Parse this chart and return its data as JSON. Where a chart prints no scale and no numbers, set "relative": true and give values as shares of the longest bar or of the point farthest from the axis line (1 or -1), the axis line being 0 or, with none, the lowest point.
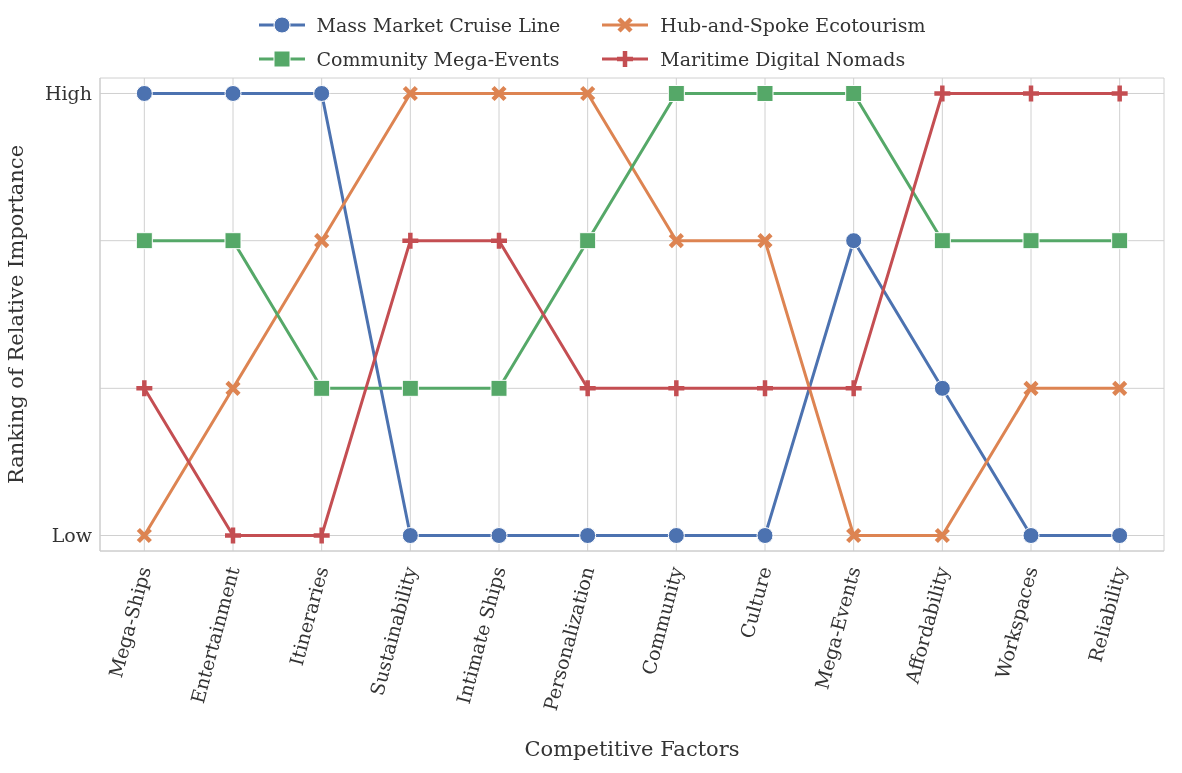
{
  "chart_data": {
    "type": "line",
    "xlabel": "Competitive Factors",
    "ylabel": "Ranking of Relative Importance",
    "categories": [
      "Mega-Ships",
      "Entertainment",
      "Itineraries",
      "Sustainability",
      "Intimate Ships",
      "Personalization",
      "Community",
      "Culture",
      "Mega-Events",
      "Affordability",
      "Workspaces",
      "Reliability"
    ],
    "series": [
      {
        "name": "Mass Market Cruise Line",
        "color": "#4c72b0",
        "marker": "circle",
        "values": [
          1,
          1,
          1,
          0,
          0,
          0,
          0,
          0,
          0.667,
          0.333,
          0,
          0
        ]
      },
      {
        "name": "Hub-and-Spoke Ecotourism",
        "color": "#dd8452",
        "marker": "cross",
        "values": [
          0,
          0.333,
          0.667,
          1,
          1,
          1,
          0.667,
          0.667,
          0,
          0,
          0.333,
          0.333
        ]
      },
      {
        "name": "Community Mega-Events",
        "color": "#55a868",
        "marker": "square",
        "values": [
          0.667,
          0.667,
          0.333,
          0.333,
          0.333,
          0.667,
          1,
          1,
          1,
          0.667,
          0.667,
          0.667
        ]
      },
      {
        "name": "Maritime Digital Nomads",
        "color": "#c44e52",
        "marker": "plus",
        "values": [
          0.333,
          0,
          0,
          0.667,
          0.667,
          0.333,
          0.333,
          0.333,
          0.333,
          1,
          1,
          1
        ]
      }
    ],
    "relative": true,
    "annotations": [
      "Low",
      "High"
    ],
    "grid": true,
    "legend": "top",
    "line_style": "solid"
  }
}
